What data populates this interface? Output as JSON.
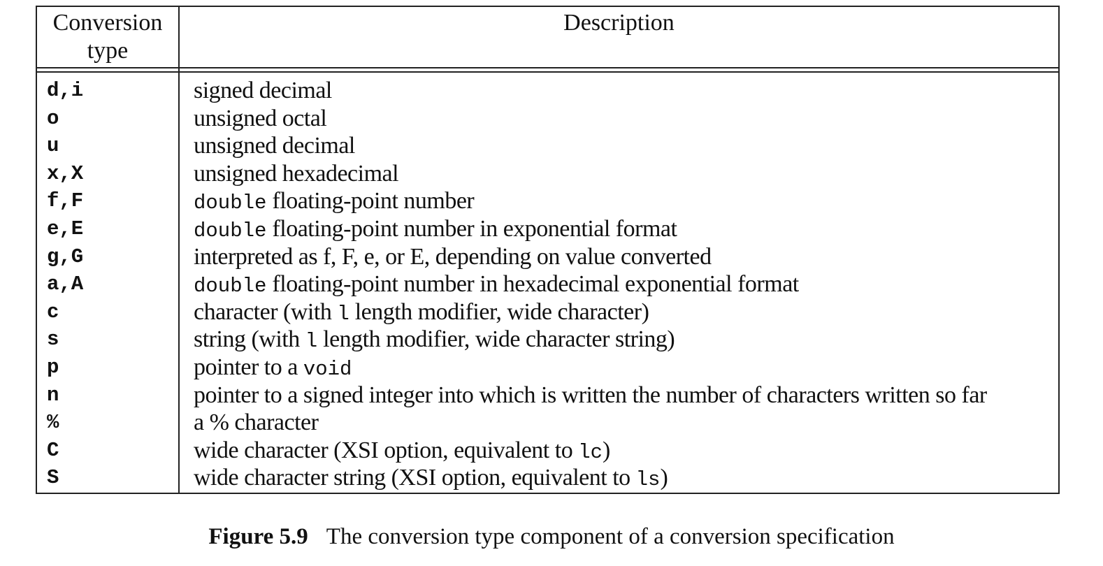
{
  "table": {
    "header": {
      "conversion_line1": "Conversion",
      "conversion_line2": "type",
      "description": "Description"
    },
    "rows": [
      {
        "type": "d,i",
        "desc": [
          {
            "text": "signed decimal"
          }
        ]
      },
      {
        "type": "o",
        "desc": [
          {
            "text": "unsigned octal"
          }
        ]
      },
      {
        "type": "u",
        "desc": [
          {
            "text": "unsigned decimal"
          }
        ]
      },
      {
        "type": "x,X",
        "desc": [
          {
            "text": "unsigned hexadecimal"
          }
        ]
      },
      {
        "type": "f,F",
        "desc": [
          {
            "text": "double",
            "code": true
          },
          {
            "text": " floating-point number"
          }
        ]
      },
      {
        "type": "e,E",
        "desc": [
          {
            "text": "double",
            "code": true
          },
          {
            "text": " floating-point number in exponential format"
          }
        ]
      },
      {
        "type": "g,G",
        "desc": [
          {
            "text": "interpreted as f, F, e, or E, depending on value converted"
          }
        ]
      },
      {
        "type": "a,A",
        "desc": [
          {
            "text": "double",
            "code": true
          },
          {
            "text": " floating-point number in hexadecimal exponential format"
          }
        ]
      },
      {
        "type": "c",
        "desc": [
          {
            "text": "character (with "
          },
          {
            "text": "l",
            "code": true
          },
          {
            "text": " length modifier, wide character)"
          }
        ]
      },
      {
        "type": "s",
        "desc": [
          {
            "text": "string (with "
          },
          {
            "text": "l",
            "code": true
          },
          {
            "text": " length modifier, wide character string)"
          }
        ]
      },
      {
        "type": "p",
        "desc": [
          {
            "text": "pointer to a "
          },
          {
            "text": "void",
            "code": true
          }
        ]
      },
      {
        "type": "n",
        "desc": [
          {
            "text": "pointer to a signed integer into which is written the number of characters written so far"
          }
        ]
      },
      {
        "type": "%",
        "desc": [
          {
            "text": "a % character"
          }
        ]
      },
      {
        "type": "C",
        "desc": [
          {
            "text": "wide character (XSI option, equivalent to "
          },
          {
            "text": "lc",
            "code": true
          },
          {
            "text": ")"
          }
        ]
      },
      {
        "type": "S",
        "desc": [
          {
            "text": "wide character string (XSI option, equivalent to "
          },
          {
            "text": "ls",
            "code": true
          },
          {
            "text": ")"
          }
        ]
      }
    ]
  },
  "caption": {
    "label": "Figure 5.9",
    "text": "The conversion type component of a conversion specification"
  }
}
